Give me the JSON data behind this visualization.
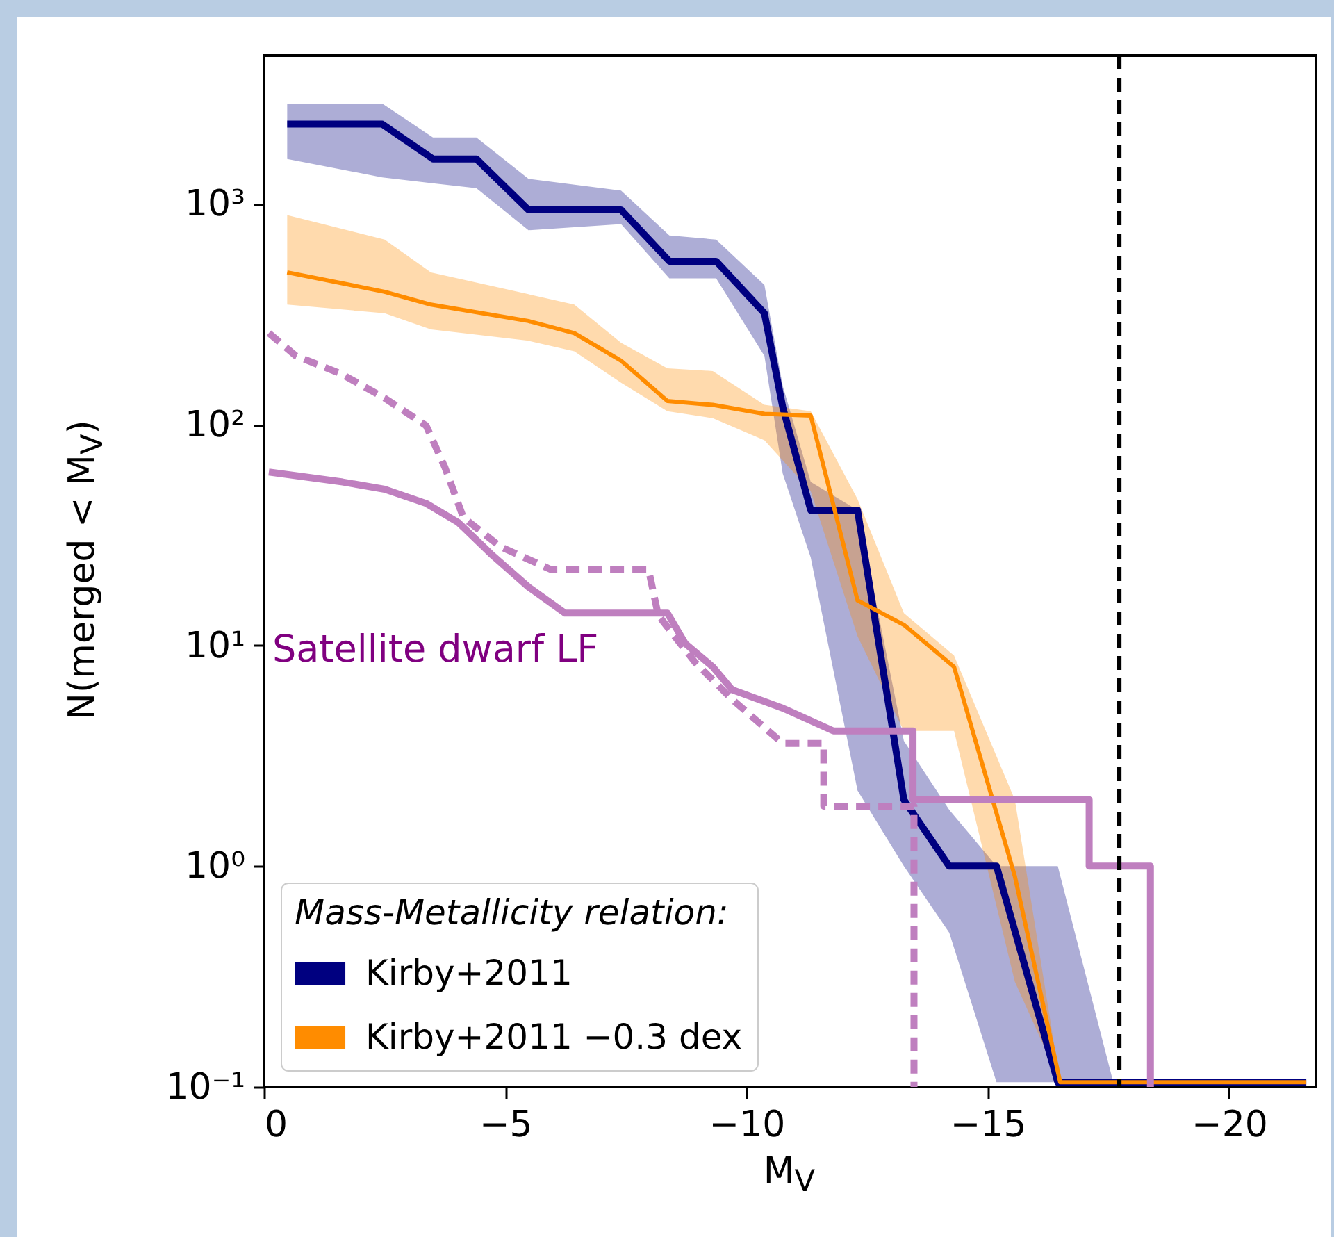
{
  "chart_data": {
    "type": "line",
    "xlabel": "M$_{V}$",
    "ylabel": "N(merged < M$_{V}$)",
    "legend_title": "Mass-Metallicity relation:",
    "log": "y",
    "legend": "bottom left",
    "grid": false,
    "xlim": [
      0,
      -21.8
    ],
    "xticks": [
      0,
      {
        "value": -5,
        "label": "−5"
      },
      {
        "value": -10,
        "label": "−10"
      },
      {
        "value": -15,
        "label": "−15"
      },
      {
        "value": -20,
        "label": "−20"
      }
    ],
    "ylim": [
      0.1,
      4700
    ],
    "yticks": [
      {
        "value": 0.1,
        "label": "10⁻¹"
      },
      {
        "value": 1,
        "label": "10⁰"
      },
      {
        "value": 10,
        "label": "10¹"
      },
      {
        "value": 100,
        "label": "10²"
      },
      {
        "value": 1000,
        "label": "10³"
      }
    ],
    "series": [
      {
        "name": "Kirby+2011",
        "color": "#000080",
        "x": [
          -0.48,
          -2.45,
          -3.5,
          -4.4,
          -5.48,
          -7.4,
          -8.4,
          -9.37,
          -10.37,
          -10.75,
          -11.33,
          -12.3,
          -13.26,
          -14.2,
          -15.18,
          -16.45,
          -17.6,
          -21.6
        ],
        "values": [
          2300,
          2300,
          1600,
          1600,
          940,
          940,
          550,
          550,
          320,
          120,
          41,
          41,
          2,
          1,
          1,
          0.105,
          0.105,
          0.105
        ],
        "lower": [
          1600,
          1320,
          1240,
          1180,
          760,
          810,
          460,
          460,
          205,
          60,
          25,
          2.2,
          1,
          0.5,
          0.105,
          0.105,
          0.105,
          0.105
        ],
        "upper": [
          2850,
          2850,
          2000,
          2000,
          1300,
          1150,
          720,
          690,
          430,
          150,
          55,
          41,
          3.7,
          1.8,
          1,
          1,
          0.105,
          0.105
        ]
      },
      {
        "name": "Kirby+2011 −0.3 dex",
        "color": "#ff8c00",
        "x": [
          -0.48,
          -2.5,
          -3.46,
          -5.48,
          -6.43,
          -7.4,
          -8.36,
          -9.3,
          -10.37,
          -11.33,
          -12.3,
          -13.26,
          -14.3,
          -15.56,
          -16.5,
          -21.6
        ],
        "values": [
          490,
          400,
          350,
          295,
          260,
          195,
          128,
          123,
          112,
          110,
          16,
          12.4,
          8,
          0.9,
          0.105,
          0.105
        ],
        "lower": [
          350,
          320,
          270,
          240,
          215,
          155,
          115,
          107,
          85,
          50,
          11,
          4.1,
          4.1,
          0.3,
          0.105,
          0.105
        ],
        "upper": [
          890,
          690,
          490,
          390,
          350,
          235,
          180,
          175,
          123,
          115,
          46,
          14,
          9,
          2,
          0.105,
          0.105
        ]
      },
      {
        "color": "#bf7fbf",
        "x": [
          -0.1,
          -1.63,
          -2.5,
          -3.36,
          -4.03,
          -4.7,
          -5.48,
          -6.24,
          -8.36,
          -8.73,
          -9.3,
          -9.7,
          -10.75,
          -11.8,
          -13.45,
          -13.45,
          -17.1,
          -17.1,
          -18.37,
          -18.37
        ],
        "values": [
          61,
          55,
          51,
          44,
          36,
          26,
          18.4,
          14,
          14,
          10.2,
          8,
          6.3,
          5.2,
          4.1,
          4.1,
          2,
          2,
          1,
          1,
          0.1
        ]
      },
      {
        "color": "#bf7fbf",
        "line_style": "dashed",
        "x": [
          -0.1,
          -0.66,
          -1.6,
          -2.5,
          -3.36,
          -3.75,
          -4.13,
          -4.9,
          -5.96,
          -7.97,
          -8.17,
          -8.93,
          -9.7,
          -10.75,
          -11.6,
          -11.6,
          -13.47,
          -13.47
        ],
        "values": [
          260,
          205,
          170,
          132,
          99,
          64,
          38,
          28,
          22,
          22,
          13.7,
          8.4,
          5.7,
          3.6,
          3.6,
          1.87,
          1.87,
          0.1
        ]
      }
    ],
    "ref_lines": [
      {
        "axis": "x",
        "value": -17.72,
        "color": "#000000",
        "line_style": "dashed"
      }
    ],
    "annotations": [
      "Satellite dwarf LF"
    ]
  }
}
